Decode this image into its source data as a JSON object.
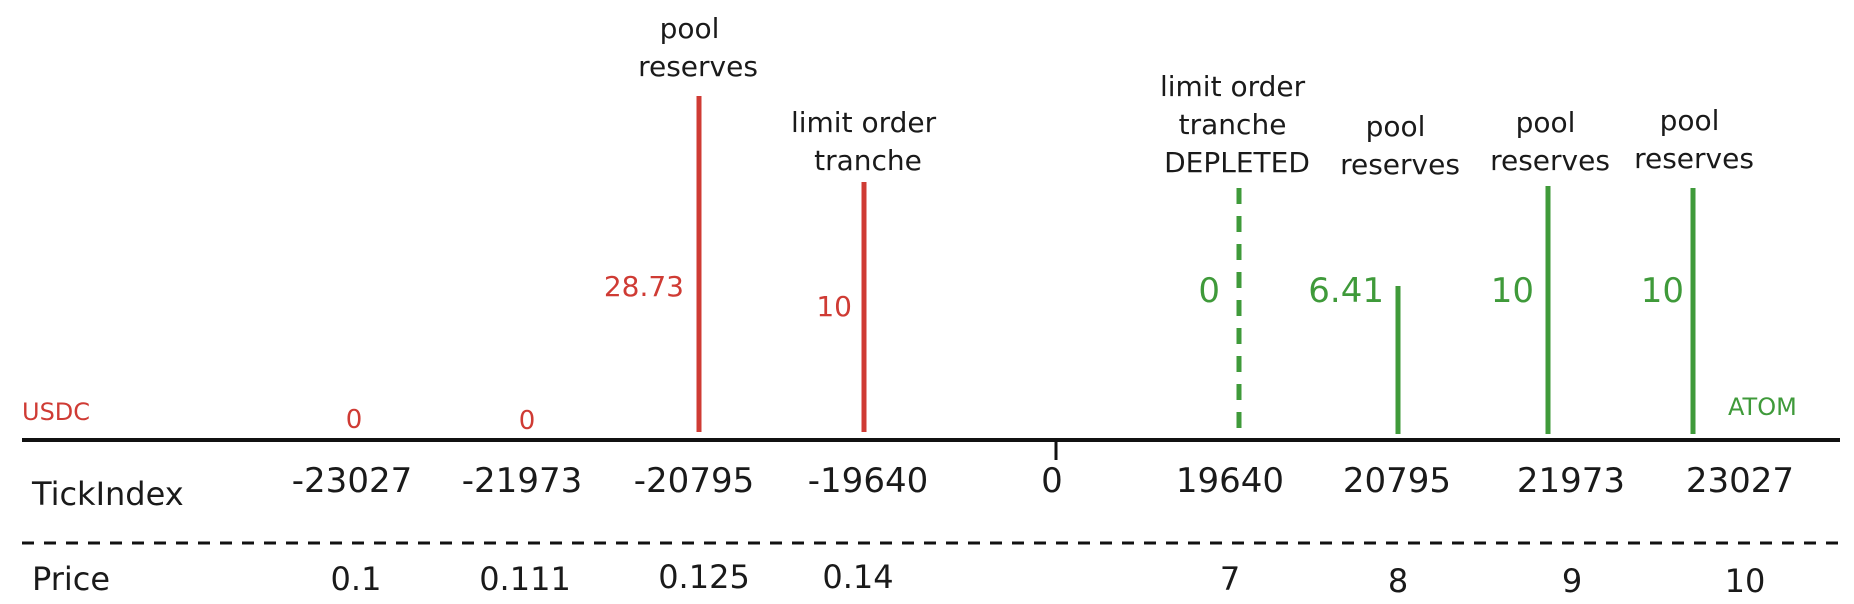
{
  "colors": {
    "usdc": "#cf3b34",
    "atom": "#3f9a3a",
    "axis": "#111111"
  },
  "sides": {
    "left_token": "USDC",
    "right_token": "ATOM"
  },
  "rows": {
    "tick_label": "TickIndex",
    "price_label": "Price"
  },
  "ticks": [
    {
      "tick": "-23027",
      "price": "0.1",
      "amount": "0",
      "side": "usdc",
      "liquidity": "",
      "style": "none"
    },
    {
      "tick": "-21973",
      "price": "0.111",
      "amount": "0",
      "side": "usdc",
      "liquidity": "",
      "style": "none"
    },
    {
      "tick": "-20795",
      "price": "0.125",
      "amount": "28.73",
      "side": "usdc",
      "liquidity": "pool reserves",
      "style": "solid"
    },
    {
      "tick": "-19640",
      "price": "0.14",
      "amount": "10",
      "side": "usdc",
      "liquidity": "limit order tranche",
      "style": "solid"
    },
    {
      "tick": "0",
      "price": "",
      "amount": "",
      "side": "center",
      "liquidity": "",
      "style": "none"
    },
    {
      "tick": "19640",
      "price": "7",
      "amount": "0",
      "side": "atom",
      "liquidity": "limit order tranche DEPLETED",
      "style": "dashed"
    },
    {
      "tick": "20795",
      "price": "8",
      "amount": "6.41",
      "side": "atom",
      "liquidity": "pool reserves",
      "style": "solid"
    },
    {
      "tick": "21973",
      "price": "9",
      "amount": "10",
      "side": "atom",
      "liquidity": "pool reserves",
      "style": "solid"
    },
    {
      "tick": "23027",
      "price": "10",
      "amount": "10",
      "side": "atom",
      "liquidity": "pool reserves",
      "style": "solid"
    }
  ]
}
